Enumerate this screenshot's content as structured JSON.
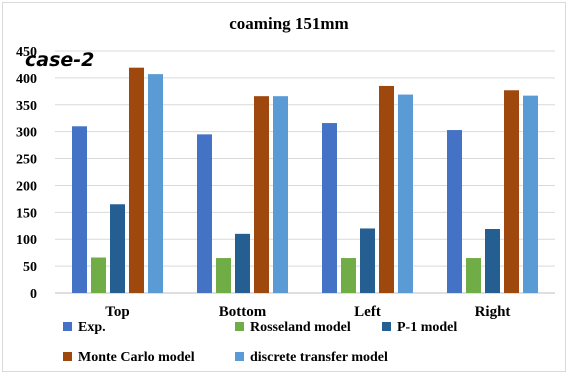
{
  "chart_data": {
    "type": "bar",
    "title": "coaming 151mm",
    "annotation": "case-2",
    "categories": [
      "Top",
      "Bottom",
      "Left",
      "Right"
    ],
    "ylim": [
      0,
      450
    ],
    "yticks": [
      0,
      50,
      100,
      150,
      200,
      250,
      300,
      350,
      400,
      450
    ],
    "grid": true,
    "legend_position": "bottom",
    "series": [
      {
        "name": "Exp.",
        "color": "#4472c4",
        "values": [
          310,
          295,
          316,
          303
        ]
      },
      {
        "name": "Rosseland model",
        "color": "#70ad47",
        "values": [
          66,
          65,
          65,
          65
        ]
      },
      {
        "name": "P-1 model",
        "color": "#255e91",
        "values": [
          165,
          110,
          120,
          119
        ]
      },
      {
        "name": "Monte Carlo model",
        "color": "#9e480e",
        "values": [
          419,
          366,
          385,
          377
        ]
      },
      {
        "name": "discrete transfer model",
        "color": "#5b9bd5",
        "values": [
          407,
          366,
          369,
          367
        ]
      }
    ]
  }
}
